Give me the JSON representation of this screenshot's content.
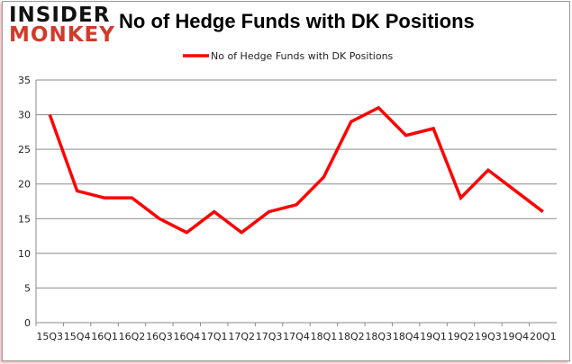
{
  "logo": {
    "line1": "INSIDER",
    "line2": "MONKEY"
  },
  "chart_data": {
    "type": "line",
    "title": "No of Hedge Funds with DK Positions",
    "xlabel": "",
    "ylabel": "",
    "categories": [
      "15Q3",
      "15Q4",
      "16Q1",
      "16Q2",
      "16Q3",
      "16Q4",
      "17Q1",
      "17Q2",
      "17Q3",
      "17Q4",
      "18Q1",
      "18Q2",
      "18Q3",
      "18Q4",
      "19Q1",
      "19Q2",
      "19Q3",
      "19Q4",
      "20Q1"
    ],
    "series": [
      {
        "name": "No of Hedge Funds with DK Positions",
        "values": [
          30,
          19,
          18,
          18,
          15,
          13,
          16,
          13,
          16,
          17,
          21,
          29,
          31,
          27,
          28,
          18,
          22,
          19,
          16
        ],
        "color": "#ff0000"
      }
    ],
    "ylim": [
      0,
      35
    ],
    "yticks": [
      0,
      5,
      10,
      15,
      20,
      25,
      30,
      35
    ],
    "grid": true,
    "legend": "top-center"
  }
}
